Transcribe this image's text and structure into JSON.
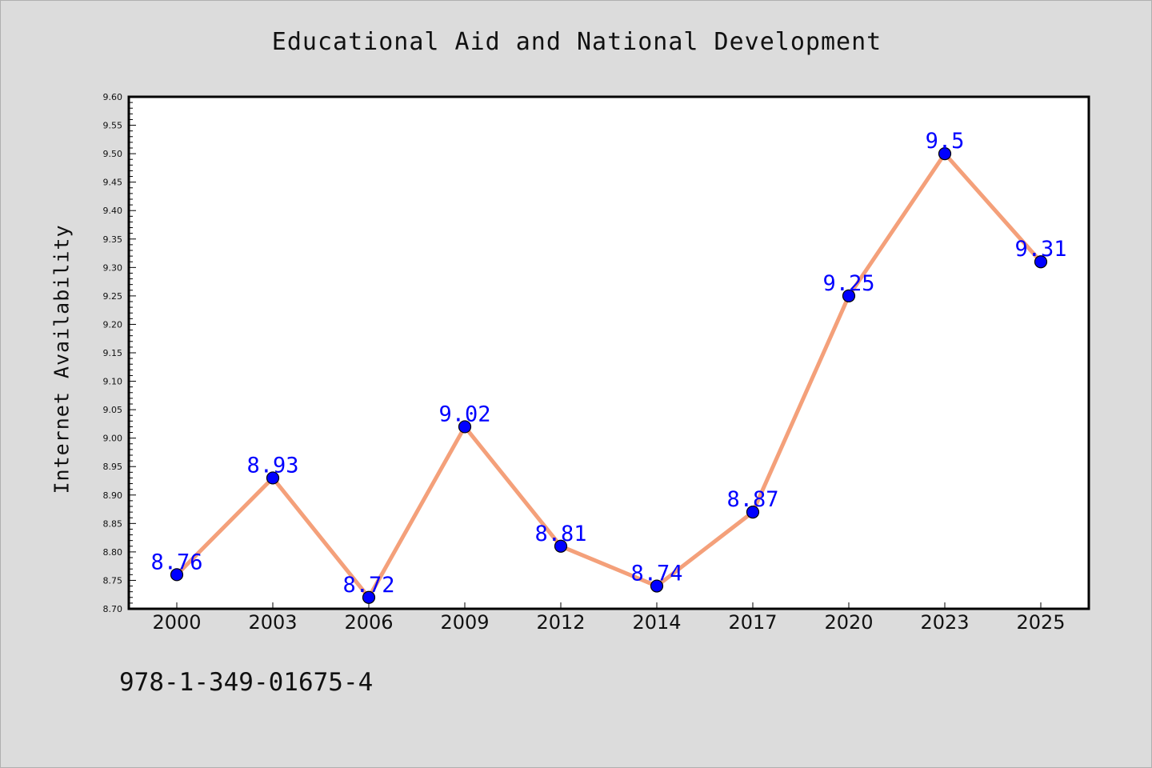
{
  "header": {
    "title": "Educational Aid and National Development"
  },
  "footer": {
    "code": "978-1-349-01675-4"
  },
  "colors": {
    "background": "#dcdcdc",
    "plot_background": "#ffffff",
    "line": "#f4a07a",
    "marker": "#0000ff",
    "data_label": "#0000ff"
  },
  "chart_data": {
    "type": "line",
    "title": "Educational Aid and National Development",
    "xlabel": "",
    "ylabel": "Internet Availability",
    "categories": [
      "2000",
      "2003",
      "2006",
      "2009",
      "2012",
      "2014",
      "2017",
      "2020",
      "2023",
      "2025"
    ],
    "series": [
      {
        "values": [
          8.76,
          8.93,
          8.72,
          9.02,
          8.81,
          8.74,
          8.87,
          9.25,
          9.5,
          9.31
        ],
        "labels": [
          "8.76",
          "8.93",
          "8.72",
          "9.02",
          "8.81",
          "8.74",
          "8.87",
          "9.25",
          "9.5",
          "9.31"
        ]
      }
    ],
    "ylim": [
      8.7,
      9.6
    ],
    "yticks": [
      "8.70",
      "8.75",
      "8.80",
      "8.85",
      "8.90",
      "8.95",
      "9.00",
      "9.05",
      "9.10",
      "9.15",
      "9.20",
      "9.25",
      "9.30",
      "9.35",
      "9.40",
      "9.45",
      "9.50",
      "9.55",
      "9.60"
    ],
    "grid": false,
    "legend": "none"
  }
}
